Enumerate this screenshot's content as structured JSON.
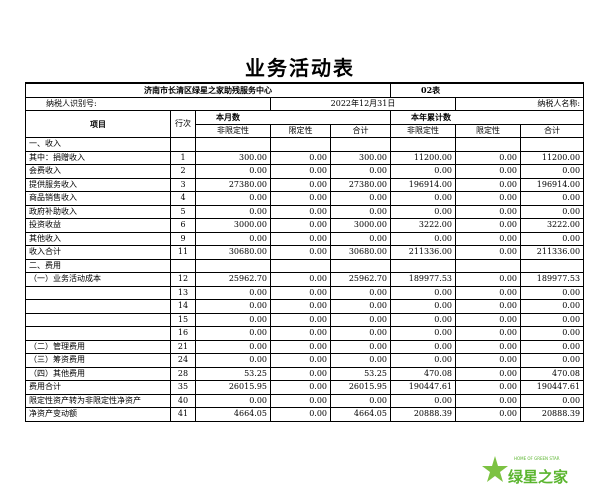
{
  "header": {
    "title": "业务活动表",
    "org": "济南市长清区绿星之家助残服务中心",
    "form_no": "02表",
    "taxpayer_id_label": "纳税人识别号:",
    "date": "2022年12月31日",
    "taxpayer_name_label": "纳税人名称:"
  },
  "table": {
    "columns": {
      "item": "项目",
      "line": "行次",
      "month": "本月数",
      "year": "本年累计数",
      "sub": [
        "非限定性",
        "限定性",
        "合计",
        "非限定性",
        "限定性",
        "合计"
      ]
    },
    "rows": [
      [
        "一、收入"
      ],
      [
        "其中：捐赠收入",
        "1",
        "300.00",
        "0.00",
        "300.00",
        "11200.00",
        "0.00",
        "11200.00"
      ],
      [
        "会费收入",
        "2",
        "0.00",
        "0.00",
        "0.00",
        "0.00",
        "0.00",
        "0.00"
      ],
      [
        "提供服务收入",
        "3",
        "27380.00",
        "0.00",
        "27380.00",
        "196914.00",
        "0.00",
        "196914.00"
      ],
      [
        "商品销售收入",
        "4",
        "0.00",
        "0.00",
        "0.00",
        "0.00",
        "0.00",
        "0.00"
      ],
      [
        "政府补助收入",
        "5",
        "0.00",
        "0.00",
        "0.00",
        "0.00",
        "0.00",
        "0.00"
      ],
      [
        "投资收益",
        "6",
        "3000.00",
        "0.00",
        "3000.00",
        "3222.00",
        "0.00",
        "3222.00"
      ],
      [
        "其他收入",
        "9",
        "0.00",
        "0.00",
        "0.00",
        "0.00",
        "0.00",
        "0.00"
      ],
      [
        "收入合计",
        "11",
        "30680.00",
        "0.00",
        "30680.00",
        "211336.00",
        "0.00",
        "211336.00"
      ],
      [
        "二、费用"
      ],
      [
        "（一）业务活动成本",
        "12",
        "25962.70",
        "0.00",
        "25962.70",
        "189977.53",
        "0.00",
        "189977.53"
      ],
      [
        null,
        "13",
        "0.00",
        "0.00",
        "0.00",
        "0.00",
        "0.00",
        "0.00"
      ],
      [
        null,
        "14",
        "0.00",
        "0.00",
        "0.00",
        "0.00",
        "0.00",
        "0.00"
      ],
      [
        null,
        "15",
        "0.00",
        "0.00",
        "0.00",
        "0.00",
        "0.00",
        "0.00"
      ],
      [
        null,
        "16",
        "0.00",
        "0.00",
        "0.00",
        "0.00",
        "0.00",
        "0.00"
      ],
      [
        "（二）管理费用",
        "21",
        "0.00",
        "0.00",
        "0.00",
        "0.00",
        "0.00",
        "0.00"
      ],
      [
        "（三）筹资费用",
        "24",
        "0.00",
        "0.00",
        "0.00",
        "0.00",
        "0.00",
        "0.00"
      ],
      [
        "（四）其他费用",
        "28",
        "53.25",
        "0.00",
        "53.25",
        "470.08",
        "0.00",
        "470.08"
      ],
      [
        "费用合计",
        "35",
        "26015.95",
        "0.00",
        "26015.95",
        "190447.61",
        "0.00",
        "190447.61"
      ],
      [
        "限定性资产转为非限定性净资产",
        "40",
        "0.00",
        "0.00",
        "0.00",
        "0.00",
        "0.00",
        "0.00"
      ],
      [
        "净资产变动额",
        "41",
        "4664.05",
        "0.00",
        "4664.05",
        "20888.39",
        "0.00",
        "20888.39"
      ]
    ]
  },
  "logo": {
    "text": "绿星之家",
    "tagline": "HOME OF GREEN STAR"
  }
}
